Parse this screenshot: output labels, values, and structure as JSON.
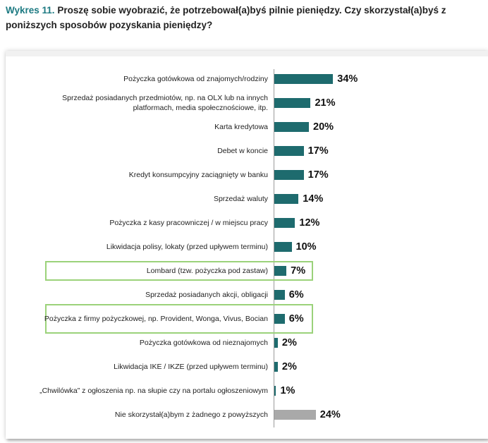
{
  "title": {
    "prefix": "Wykres 11.",
    "text": " Proszę sobie wyobrazić, że potrzebował(a)byś pilnie pieniędzy. Czy skorzystał(a)byś z poniższych sposobów pozyskania pieniędzy?"
  },
  "colors": {
    "bar": "#1e6b6e",
    "bar_none": "#a9a9a9",
    "highlight": "#9bd27a",
    "title_prefix": "#1d7a82"
  },
  "chart_data": {
    "type": "bar",
    "orientation": "horizontal",
    "xlim": [
      0,
      100
    ],
    "categories": [
      "Pożyczka gotówkowa od znajomych/rodziny",
      "Sprzedaż posiadanych przedmiotów, np. na OLX lub na innych platformach, media społecznościowe, itp.",
      "Karta kredytowa",
      "Debet w koncie",
      "Kredyt konsumpcyjny zaciągnięty w banku",
      "Sprzedaż waluty",
      "Pożyczka z kasy pracowniczej / w miejscu pracy",
      "Likwidacja polisy, lokaty (przed upływem terminu)",
      "Lombard (tzw. pożyczka pod zastaw)",
      "Sprzedaż posiadanych akcji, obligacji",
      "Pożyczka z firmy pożyczkowej, np. Provident, Wonga, Vivus, Bocian",
      "Pożyczka gotówkowa od nieznajomych",
      "Likwidacja IKE / IKZE (przed upływem terminu)",
      "„Chwilówka” z ogłoszenia np. na słupie czy na portalu ogłoszeniowym",
      "Nie skorzystał(a)bym z żadnego z powyższych"
    ],
    "values": [
      34,
      21,
      20,
      17,
      17,
      14,
      12,
      10,
      7,
      6,
      6,
      2,
      2,
      1,
      24
    ],
    "value_labels": [
      "34%",
      "21%",
      "20%",
      "17%",
      "17%",
      "14%",
      "12%",
      "10%",
      "7%",
      "6%",
      "6%",
      "2%",
      "2%",
      "1%",
      "24%"
    ],
    "highlighted": [
      "Lombard (tzw. pożyczka pod zastaw)",
      "Pożyczka z firmy pożyczkowej, np. Provident, Wonga, Vivus, Bocian"
    ],
    "grey_category": "Nie skorzystał(a)bym z żadnego z powyższych"
  }
}
